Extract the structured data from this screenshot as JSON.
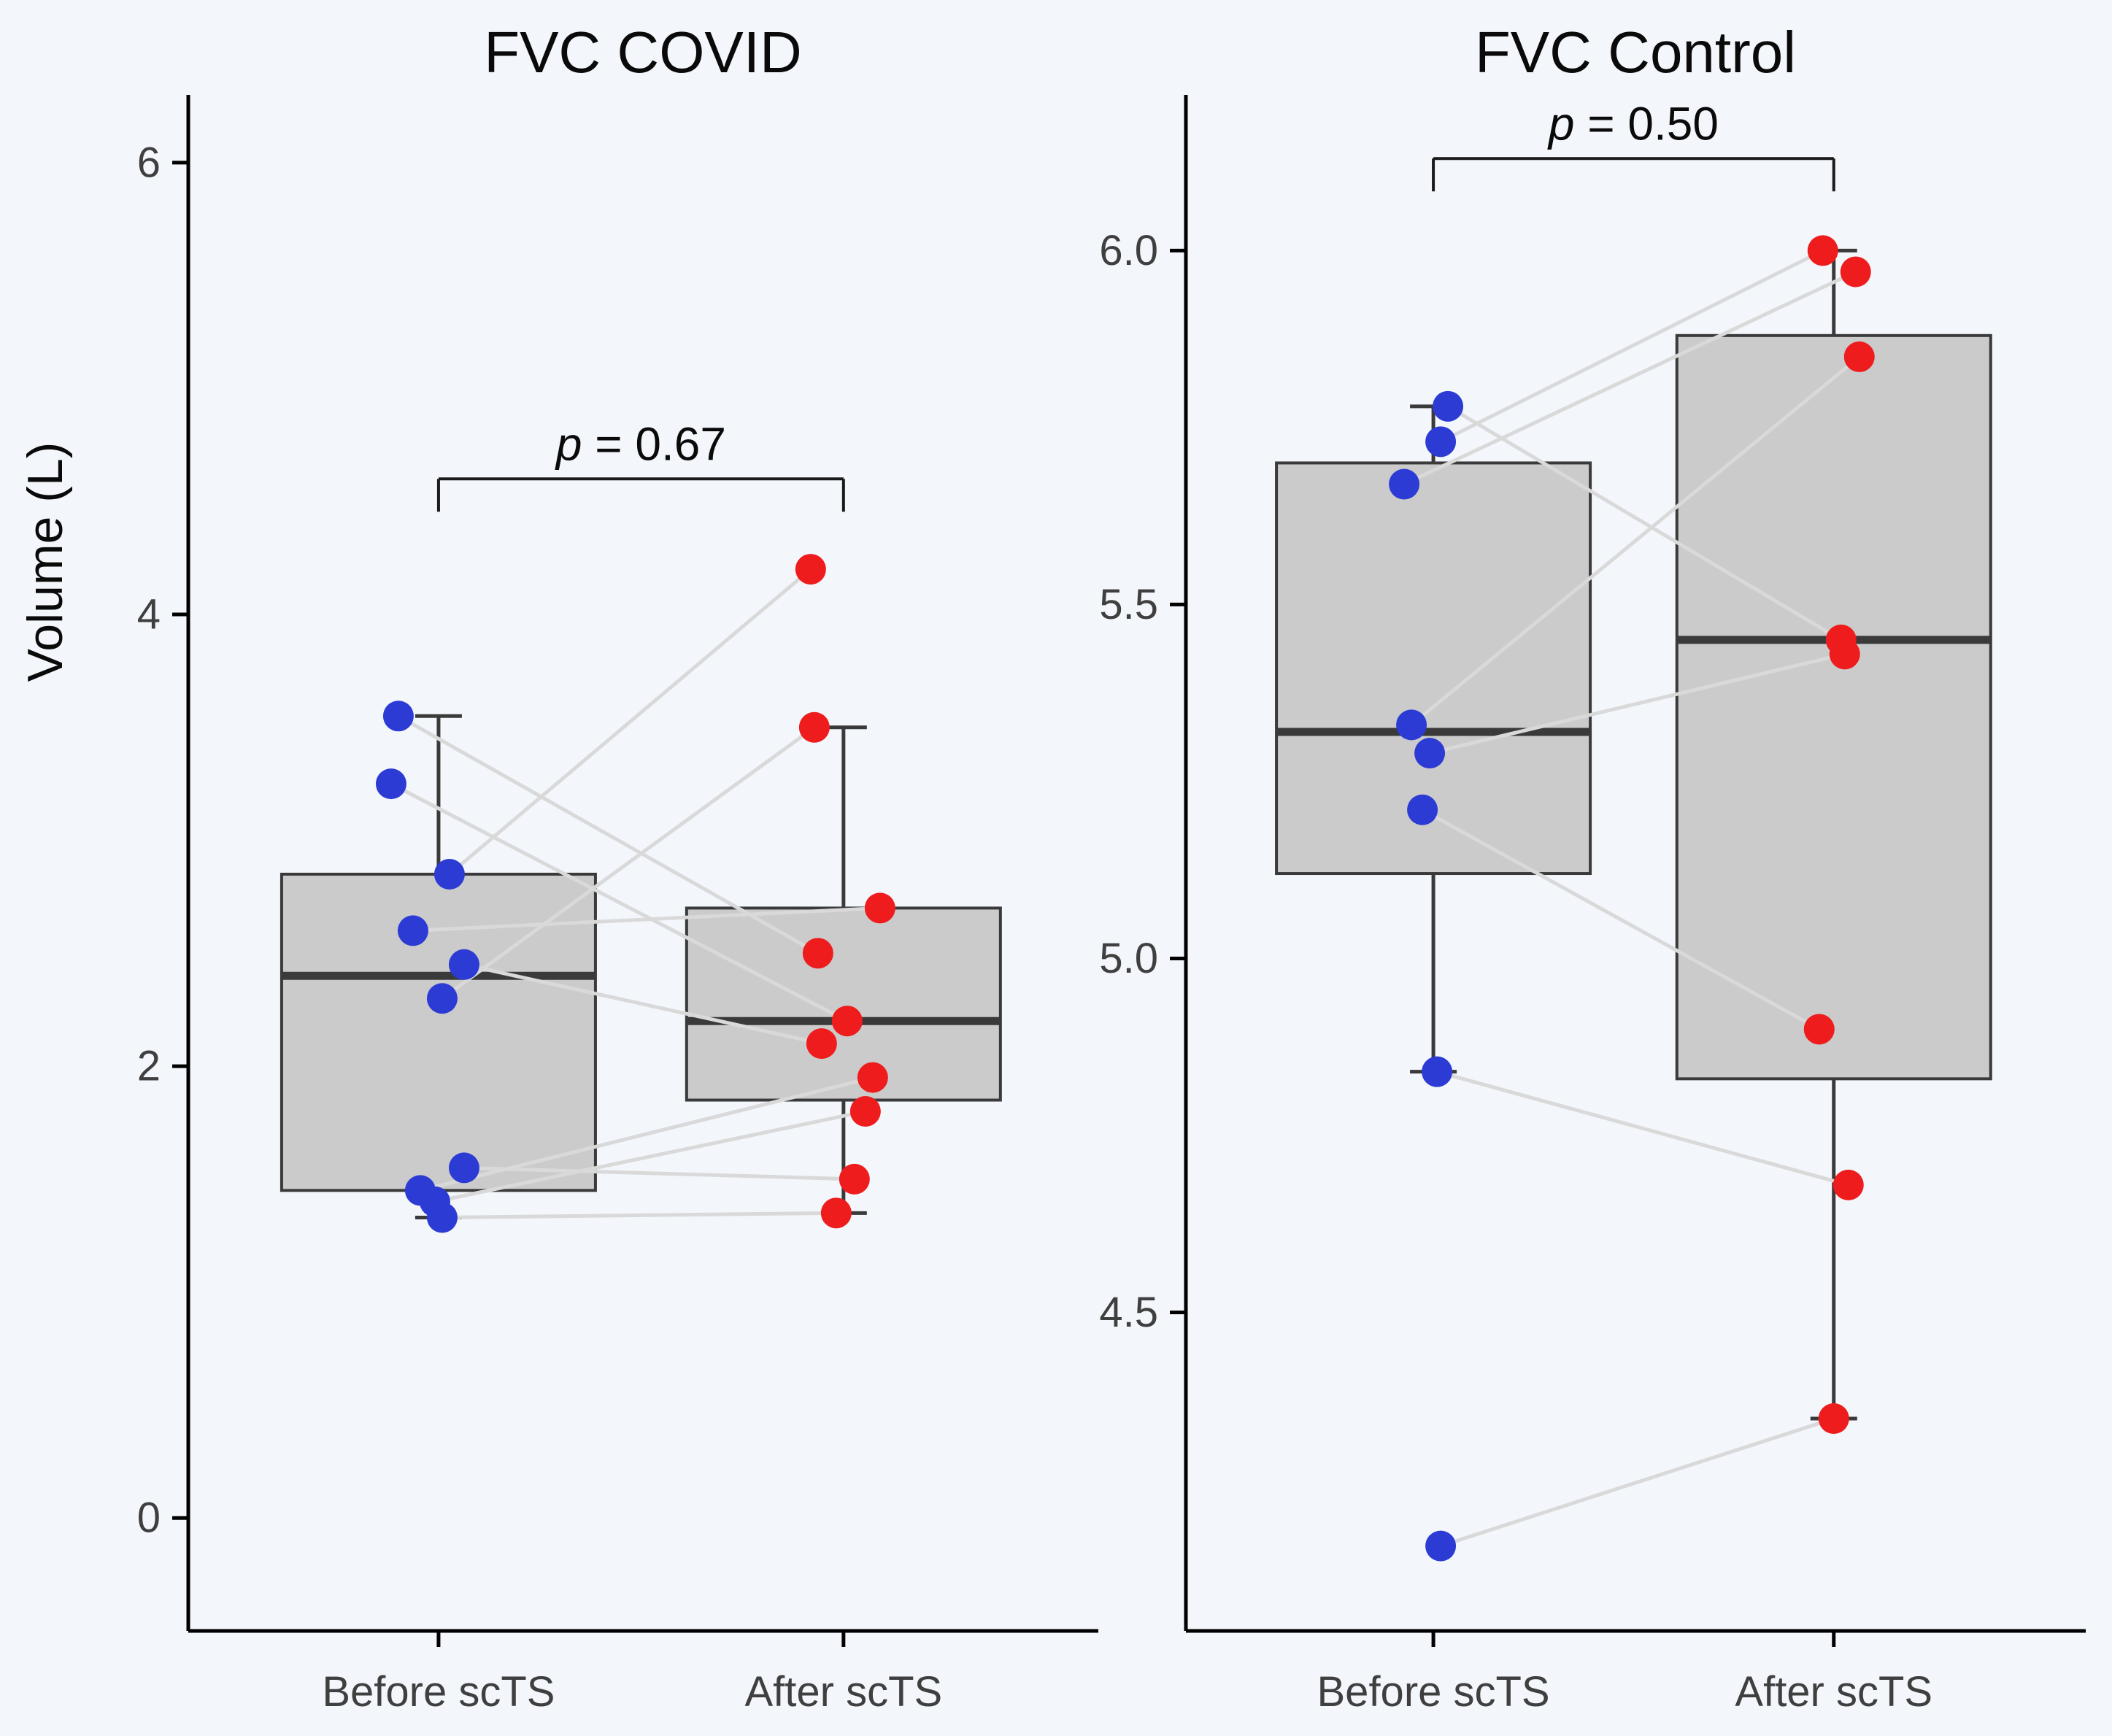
{
  "figure": {
    "background": "#f3f6fb",
    "colors": {
      "before_point": "#2b3bd3",
      "after_point": "#ee1c1c",
      "box_fill": "#cbcbcb",
      "box_stroke": "#3a3a3a",
      "pair_line": "#d9d9d9",
      "axis": "#000000",
      "tick_text": "#3f3f3f"
    }
  },
  "chart_data": {
    "type": "boxplot-paired",
    "ylabel": "Volume (L)",
    "legend": "none",
    "grid": false,
    "panels": [
      {
        "title": "FVC COVID",
        "p_label": "p = 0.67",
        "categories": [
          "Before scTS",
          "After scTS"
        ],
        "ylim": [
          -0.5,
          6.3
        ],
        "yticks": [
          {
            "v": 0,
            "label": "0"
          },
          {
            "v": 2,
            "label": "2"
          },
          {
            "v": 4,
            "label": "4"
          },
          {
            "v": 6,
            "label": "6"
          }
        ],
        "bracket_y": 4.6,
        "boxes": [
          {
            "lo": 1.33,
            "q1": 1.45,
            "median": 2.4,
            "q3": 2.85,
            "hi": 3.55
          },
          {
            "lo": 1.35,
            "q1": 1.85,
            "median": 2.2,
            "q3": 2.7,
            "hi": 3.5
          }
        ],
        "pairs": [
          {
            "before": 3.55,
            "after": 2.5,
            "dx_before": -55,
            "dx_after": -35
          },
          {
            "before": 3.25,
            "after": 2.2,
            "dx_before": -65,
            "dx_after": 5
          },
          {
            "before": 2.85,
            "after": 4.2,
            "dx_before": 15,
            "dx_after": -45
          },
          {
            "before": 2.6,
            "after": 2.7,
            "dx_before": -35,
            "dx_after": 50
          },
          {
            "before": 2.45,
            "after": 2.1,
            "dx_before": 35,
            "dx_after": -30
          },
          {
            "before": 2.3,
            "after": 3.5,
            "dx_before": 5,
            "dx_after": -40
          },
          {
            "before": 1.55,
            "after": 1.5,
            "dx_before": 35,
            "dx_after": 15
          },
          {
            "before": 1.45,
            "after": 1.95,
            "dx_before": -25,
            "dx_after": 40
          },
          {
            "before": 1.4,
            "after": 1.8,
            "dx_before": -5,
            "dx_after": 30
          },
          {
            "before": 1.33,
            "after": 1.35,
            "dx_before": 5,
            "dx_after": -10
          }
        ]
      },
      {
        "title": "FVC Control",
        "p_label": "p = 0.50",
        "categories": [
          "Before scTS",
          "After scTS"
        ],
        "ylim": [
          4.05,
          6.22
        ],
        "yticks": [
          {
            "v": 4.5,
            "label": "4.5"
          },
          {
            "v": 5.0,
            "label": "5.0"
          },
          {
            "v": 5.5,
            "label": "5.5"
          },
          {
            "v": 6.0,
            "label": "6.0"
          }
        ],
        "bracket_y": 6.13,
        "boxes": [
          {
            "lo": 4.84,
            "q1": 5.12,
            "median": 5.32,
            "q3": 5.7,
            "hi": 5.78
          },
          {
            "lo": 4.35,
            "q1": 4.83,
            "median": 5.45,
            "q3": 5.88,
            "hi": 6.0
          }
        ],
        "pairs": [
          {
            "before": 5.78,
            "after": 5.45,
            "dx_before": 20,
            "dx_after": 10
          },
          {
            "before": 5.73,
            "after": 6.0,
            "dx_before": 10,
            "dx_after": -15
          },
          {
            "before": 5.67,
            "after": 5.97,
            "dx_before": -40,
            "dx_after": 30
          },
          {
            "before": 5.33,
            "after": 5.85,
            "dx_before": -30,
            "dx_after": 35
          },
          {
            "before": 5.29,
            "after": 5.43,
            "dx_before": -5,
            "dx_after": 15
          },
          {
            "before": 5.21,
            "after": 4.9,
            "dx_before": -15,
            "dx_after": -20
          },
          {
            "before": 4.84,
            "after": 4.68,
            "dx_before": 5,
            "dx_after": 20
          },
          {
            "before": 4.17,
            "after": 4.35,
            "dx_before": 10,
            "dx_after": 0
          }
        ]
      }
    ]
  }
}
